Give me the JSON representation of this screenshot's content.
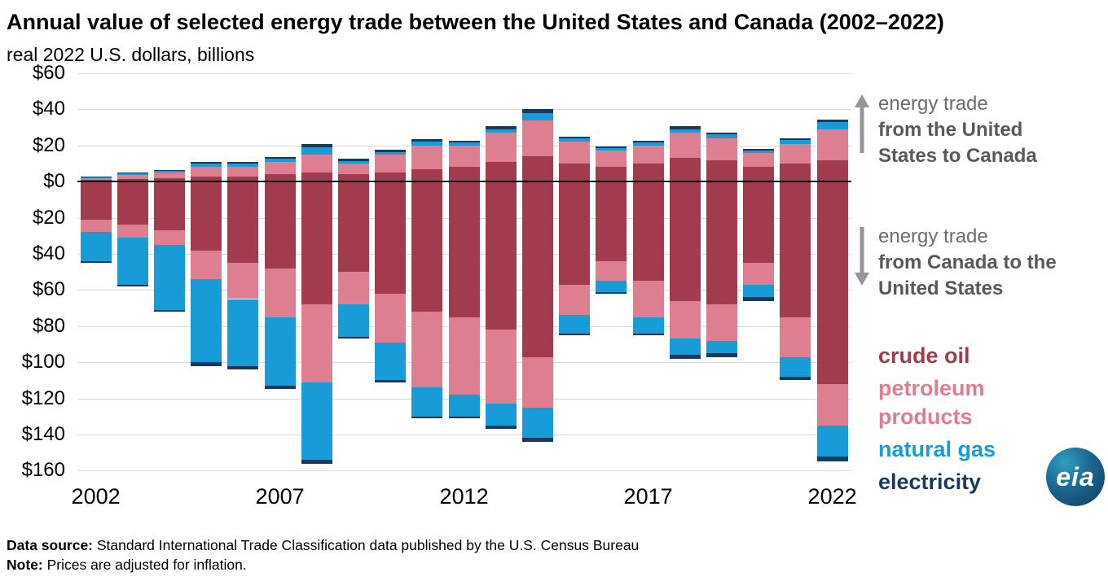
{
  "header": {
    "title": "Annual value of selected energy trade between the United States and Canada (2002–2022)",
    "subtitle": "real 2022 U.S. dollars, billions"
  },
  "chart_data": {
    "type": "bar",
    "stacked": true,
    "diverging": true,
    "title": "Annual value of selected energy trade between the United States and Canada (2002–2022)",
    "unit": "real 2022 U.S. dollars, billions",
    "x": [
      2002,
      2003,
      2004,
      2005,
      2006,
      2007,
      2008,
      2009,
      2010,
      2011,
      2012,
      2013,
      2014,
      2015,
      2016,
      2017,
      2018,
      2019,
      2020,
      2021,
      2022
    ],
    "x_tick_labels": [
      "2002",
      "2007",
      "2012",
      "2017",
      "2022"
    ],
    "y_axis": {
      "positive_max": 60,
      "negative_max": 160,
      "tick_step": 20,
      "ticks": [
        {
          "label": "$60",
          "value": 60
        },
        {
          "label": "$40",
          "value": 40
        },
        {
          "label": "$20",
          "value": 20
        },
        {
          "label": "$0",
          "value": 0
        },
        {
          "label": "$20",
          "value": -20
        },
        {
          "label": "$40",
          "value": -40
        },
        {
          "label": "$60",
          "value": -60
        },
        {
          "label": "$80",
          "value": -80
        },
        {
          "label": "$100",
          "value": -100
        },
        {
          "label": "$120",
          "value": -120
        },
        {
          "label": "$140",
          "value": -140
        },
        {
          "label": "$160",
          "value": -160
        }
      ]
    },
    "series": [
      {
        "key": "crude_oil",
        "label": "crude oil"
      },
      {
        "key": "petroleum_products",
        "label": "petroleum products"
      },
      {
        "key": "natural_gas",
        "label": "natural gas"
      },
      {
        "key": "electricity",
        "label": "electricity"
      }
    ],
    "colors": {
      "crude_oil": "#a23b4d",
      "petroleum_products": "#de7f91",
      "natural_gas": "#189cd8",
      "electricity": "#173a5e",
      "gridline": "#d9d9d9",
      "zero_line": "#000000"
    },
    "us_to_canada": {
      "direction": "positive",
      "crude_oil": [
        1,
        1.5,
        2,
        3,
        3,
        4,
        5,
        4,
        5,
        7,
        8,
        11,
        14,
        10,
        8,
        10,
        13,
        12,
        8,
        10,
        12
      ],
      "petroleum_products": [
        1,
        2,
        3,
        5,
        5,
        7,
        10,
        6,
        10,
        13,
        12,
        16,
        20,
        12,
        9,
        10,
        14,
        12,
        8,
        11,
        17
      ],
      "natural_gas": [
        0.5,
        1,
        1,
        2,
        2,
        1.5,
        4,
        1.5,
        1.5,
        2,
        1.5,
        2,
        4,
        2,
        1.5,
        1.5,
        2,
        2,
        1,
        2,
        4
      ],
      "electricity": [
        0.5,
        0.5,
        0.5,
        1,
        1,
        1,
        2,
        1,
        1,
        1.5,
        1,
        1.5,
        2,
        1,
        1,
        1,
        1.5,
        1,
        1,
        1,
        1.5
      ]
    },
    "canada_to_us": {
      "direction": "negative",
      "crude_oil": [
        21,
        24,
        27,
        38,
        45,
        48,
        68,
        50,
        62,
        72,
        75,
        82,
        97,
        57,
        44,
        55,
        66,
        68,
        45,
        75,
        112
      ],
      "petroleum_products": [
        7,
        7,
        8,
        16,
        20,
        27,
        43,
        18,
        27,
        42,
        43,
        41,
        28,
        17,
        11,
        20,
        21,
        20,
        12,
        22,
        23
      ],
      "natural_gas": [
        16,
        26,
        36,
        46,
        37,
        38,
        43,
        18,
        21,
        16,
        12,
        12,
        17,
        10,
        6,
        9,
        9,
        7,
        7,
        11,
        17
      ],
      "electricity": [
        1,
        1,
        1,
        2,
        2,
        2,
        2,
        1,
        1,
        1,
        1,
        2,
        2,
        1,
        1,
        1,
        2,
        2,
        2,
        2,
        3
      ]
    },
    "legend_position": "right",
    "grid": true
  },
  "annotations": {
    "us_to_canada": {
      "prefix": "energy trade",
      "bold": "from the United States to Canada"
    },
    "canada_to_us": {
      "prefix": "energy trade",
      "bold": "from Canada to the United States"
    }
  },
  "legend": {
    "items": [
      {
        "label": "crude oil"
      },
      {
        "label": "petroleum products"
      },
      {
        "label": "natural gas"
      },
      {
        "label": "electricity"
      }
    ]
  },
  "logo": {
    "text": "eia"
  },
  "footer": {
    "data_source_label": "Data source:",
    "data_source_text": " Standard International Trade Classification data published by the U.S. Census Bureau",
    "note_label": "Note:",
    "note_text": " Prices are adjusted for inflation."
  }
}
